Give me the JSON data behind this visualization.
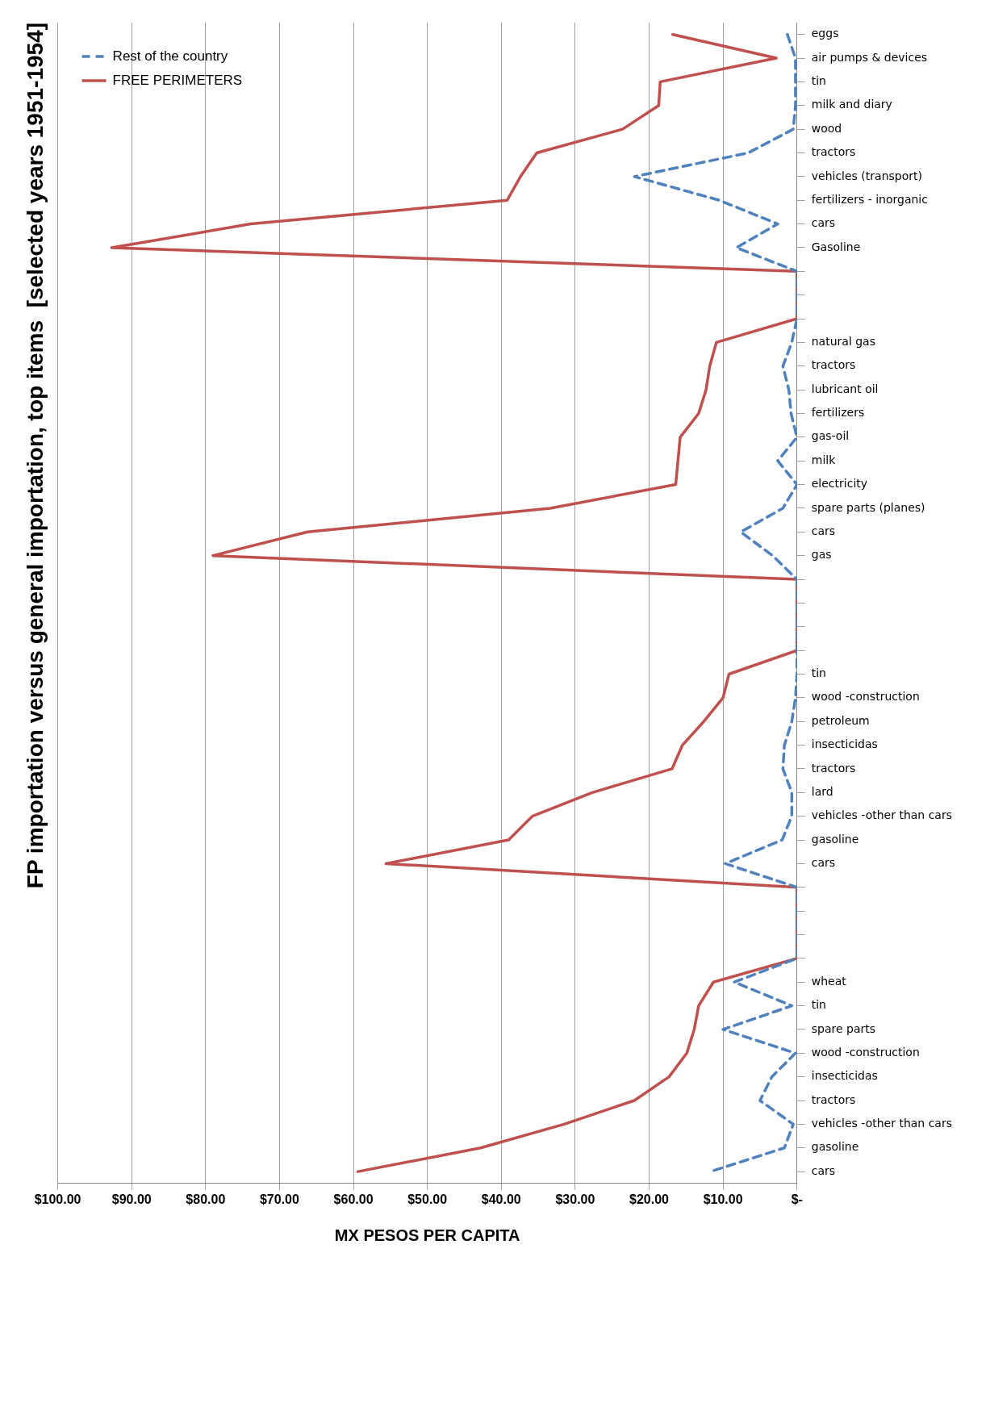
{
  "chart_data": {
    "type": "line",
    "title": "FP importation versus general importation, top items  [selected years 1951-1954]",
    "xlabel": "MX PESOS PER CAPITA",
    "orientation": "horizontal",
    "categories": [
      "eggs",
      "air pumps & devices",
      "tin",
      "milk and diary",
      "wood",
      "tractors",
      "vehicles (transport)",
      "fertilizers - inorganic",
      "cars",
      "Gasoline",
      null,
      null,
      null,
      "natural gas",
      "tractors",
      "lubricant oil",
      "fertilizers",
      "gas-oil",
      "milk",
      "electricity",
      "spare parts (planes)",
      "cars",
      "gas",
      null,
      null,
      null,
      null,
      "tin",
      "wood -construction",
      "petroleum",
      "insecticidas",
      "tractors",
      "lard",
      "vehicles -other than cars",
      "gasoline",
      "cars",
      null,
      null,
      null,
      null,
      "wheat",
      "tin",
      "spare parts",
      "wood -construction",
      "insecticidas",
      "tractors",
      "vehicles -other than cars",
      "gasoline",
      "cars"
    ],
    "series": [
      {
        "name": "Rest of the country",
        "color": "#4f81bd",
        "line_style": "dashed",
        "values": [
          1.3,
          0.2,
          0.2,
          0.2,
          0.5,
          6.6,
          22.0,
          10.5,
          2.6,
          8.2,
          0,
          0,
          0,
          0.7,
          1.9,
          1.1,
          0.8,
          0,
          2.6,
          0,
          1.9,
          7.6,
          3.3,
          0,
          0,
          0,
          0,
          0,
          0.2,
          0.7,
          1.7,
          1.9,
          0.7,
          0.7,
          2.0,
          9.7,
          0,
          0,
          0,
          0,
          8.5,
          0.7,
          10.0,
          0.2,
          3.4,
          5.0,
          0.5,
          1.7,
          11.7
        ]
      },
      {
        "name": "FREE PERIMETERS",
        "color": "#c0504d",
        "line_style": "solid",
        "values": [
          16.8,
          2.8,
          18.5,
          18.7,
          23.6,
          35.2,
          37.4,
          39.2,
          73.9,
          92.7,
          0,
          0,
          0,
          10.9,
          11.8,
          12.3,
          13.3,
          15.8,
          16.1,
          16.4,
          33.4,
          66.2,
          79.0,
          0,
          0,
          0,
          0,
          9.2,
          10.0,
          12.6,
          15.5,
          16.9,
          27.7,
          35.8,
          39.0,
          55.6,
          0,
          0,
          0,
          0,
          11.3,
          13.3,
          13.9,
          14.9,
          17.3,
          22.0,
          31.5,
          42.8,
          59.4
        ]
      }
    ],
    "xlim": [
      100,
      0
    ],
    "xticks": [
      {
        "value": 100,
        "label": "$100.00"
      },
      {
        "value": 90,
        "label": "$90.00"
      },
      {
        "value": 80,
        "label": "$80.00"
      },
      {
        "value": 70,
        "label": "$70.00"
      },
      {
        "value": 60,
        "label": "$60.00"
      },
      {
        "value": 50,
        "label": "$50.00"
      },
      {
        "value": 40,
        "label": "$40.00"
      },
      {
        "value": 30,
        "label": "$30.00"
      },
      {
        "value": 20,
        "label": "$20.00"
      },
      {
        "value": 10,
        "label": "$10.00"
      },
      {
        "value": 0,
        "label": "$-"
      }
    ],
    "grid": "x",
    "legend": "top left",
    "marker": "none"
  }
}
